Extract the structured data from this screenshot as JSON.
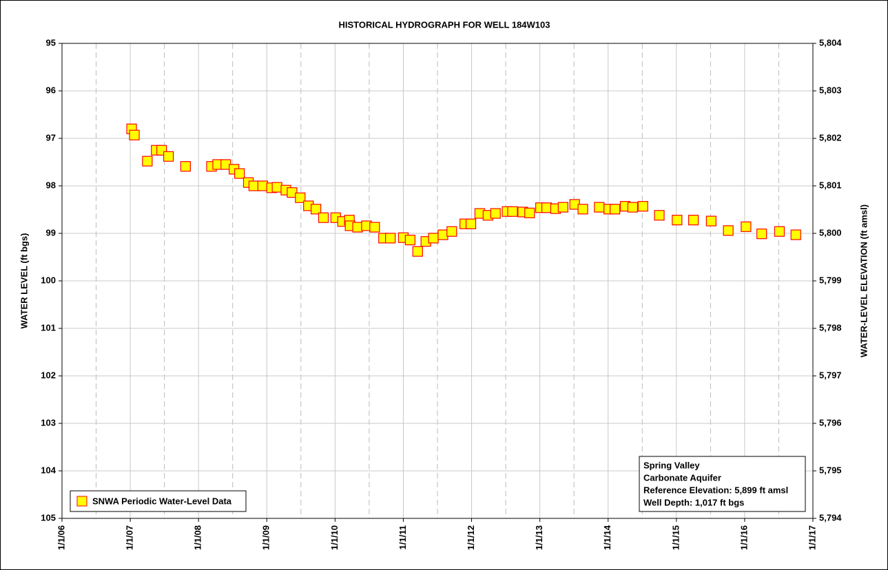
{
  "chart_data": {
    "type": "scatter",
    "title": "HISTORICAL HYDROGRAPH FOR WELL 184W103",
    "y_label": "WATER LEVEL (ft bgs)",
    "y2_label": "WATER-LEVEL ELEVATION (ft amsl)",
    "xlim": [
      2006,
      2017
    ],
    "xticks": [
      {
        "value": 2006,
        "label": "1/1/06"
      },
      {
        "value": 2007,
        "label": "1/1/07"
      },
      {
        "value": 2008,
        "label": "1/1/08"
      },
      {
        "value": 2009,
        "label": "1/1/09"
      },
      {
        "value": 2010,
        "label": "1/1/10"
      },
      {
        "value": 2011,
        "label": "1/1/11"
      },
      {
        "value": 2012,
        "label": "1/1/12"
      },
      {
        "value": 2013,
        "label": "1/1/13"
      },
      {
        "value": 2014,
        "label": "1/1/14"
      },
      {
        "value": 2015,
        "label": "1/1/15"
      },
      {
        "value": 2016,
        "label": "1/1/16"
      },
      {
        "value": 2017,
        "label": "1/1/17"
      }
    ],
    "ylim": [
      105,
      95
    ],
    "yticks": [
      95,
      96,
      97,
      98,
      99,
      100,
      101,
      102,
      103,
      104,
      105
    ],
    "y2lim": [
      5794,
      5804
    ],
    "y2ticks": [
      {
        "value": 5804,
        "label": "5,804"
      },
      {
        "value": 5803,
        "label": "5,803"
      },
      {
        "value": 5802,
        "label": "5,802"
      },
      {
        "value": 5801,
        "label": "5,801"
      },
      {
        "value": 5800,
        "label": "5,800"
      },
      {
        "value": 5799,
        "label": "5,799"
      },
      {
        "value": 5798,
        "label": "5,798"
      },
      {
        "value": 5797,
        "label": "5,797"
      },
      {
        "value": 5796,
        "label": "5,796"
      },
      {
        "value": 5795,
        "label": "5,795"
      },
      {
        "value": 5794,
        "label": "5,794"
      }
    ],
    "grid": true,
    "legend": "lower left",
    "series": [
      {
        "name": "SNWA Periodic Water-Level Data",
        "color": "#ffff00",
        "edge_color": "#ff0000",
        "x": [
          2007.02,
          2007.06,
          2007.25,
          2007.38,
          2007.46,
          2007.56,
          2007.81,
          2008.19,
          2008.28,
          2008.4,
          2008.52,
          2008.6,
          2008.73,
          2008.81,
          2008.94,
          2009.07,
          2009.15,
          2009.28,
          2009.37,
          2009.49,
          2009.61,
          2009.72,
          2009.83,
          2010.01,
          2010.11,
          2010.21,
          2010.22,
          2010.33,
          2010.46,
          2010.58,
          2010.71,
          2010.81,
          2011.0,
          2011.1,
          2011.21,
          2011.33,
          2011.44,
          2011.58,
          2011.71,
          2011.9,
          2011.99,
          2012.12,
          2012.24,
          2012.35,
          2012.52,
          2012.6,
          2012.75,
          2012.85,
          2013.01,
          2013.1,
          2013.23,
          2013.34,
          2013.51,
          2013.63,
          2013.87,
          2014.01,
          2014.1,
          2014.25,
          2014.36,
          2014.51,
          2014.75,
          2015.01,
          2015.25,
          2015.51,
          2015.76,
          2016.02,
          2016.25,
          2016.51,
          2016.75
        ],
        "values": [
          96.8,
          96.93,
          97.48,
          97.25,
          97.25,
          97.38,
          97.59,
          97.59,
          97.55,
          97.55,
          97.65,
          97.74,
          97.93,
          98.0,
          98.0,
          98.04,
          98.03,
          98.09,
          98.14,
          98.25,
          98.42,
          98.49,
          98.67,
          98.67,
          98.75,
          98.72,
          98.84,
          98.87,
          98.84,
          98.87,
          99.1,
          99.1,
          99.09,
          99.14,
          99.38,
          99.17,
          99.1,
          99.03,
          98.96,
          98.8,
          98.8,
          98.58,
          98.62,
          98.58,
          98.54,
          98.54,
          98.55,
          98.57,
          98.46,
          98.46,
          98.48,
          98.45,
          98.39,
          98.49,
          98.45,
          98.49,
          98.49,
          98.43,
          98.45,
          98.43,
          98.62,
          98.72,
          98.72,
          98.74,
          98.94,
          98.86,
          99.01,
          98.96,
          99.03
        ]
      }
    ],
    "annotations": [
      "Spring Valley",
      "Carbonate Aquifer",
      "Reference Elevation: 5,899 ft amsl",
      "Well Depth: 1,017 ft bgs"
    ]
  }
}
